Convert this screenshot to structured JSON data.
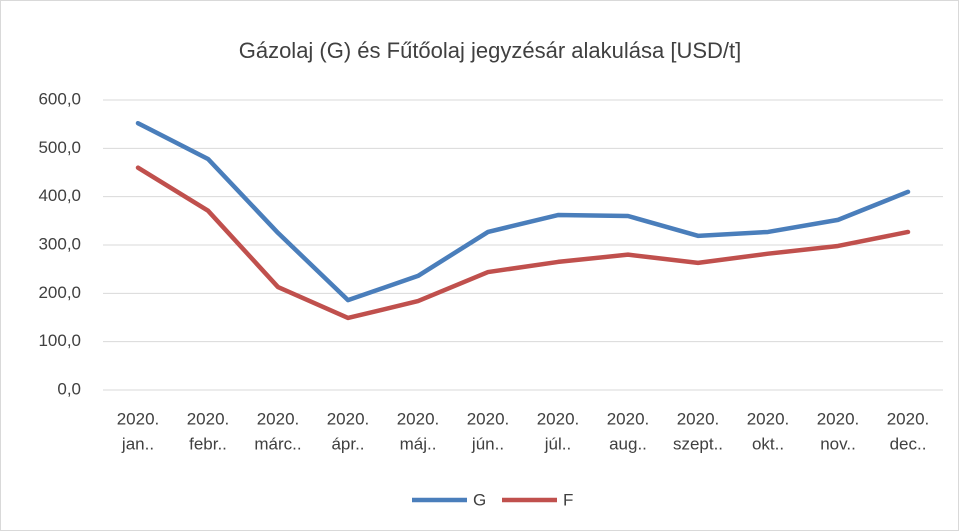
{
  "chart_data": {
    "type": "line",
    "title": "Gázolaj (G) és Fűtőolaj jegyzésár alakulása [USD/t]",
    "categories": [
      [
        "2020.",
        "jan.."
      ],
      [
        "2020.",
        "febr.."
      ],
      [
        "2020.",
        "márc.."
      ],
      [
        "2020.",
        "ápr.."
      ],
      [
        "2020.",
        "máj.."
      ],
      [
        "2020.",
        "jún.."
      ],
      [
        "2020.",
        "júl.."
      ],
      [
        "2020.",
        "aug.."
      ],
      [
        "2020.",
        "szept.."
      ],
      [
        "2020.",
        "okt.."
      ],
      [
        "2020.",
        "nov.."
      ],
      [
        "2020.",
        "dec.."
      ]
    ],
    "series": [
      {
        "name": "G",
        "color": "#4a7ebb",
        "values": [
          552,
          478,
          325,
          186,
          236,
          327,
          362,
          360,
          319,
          327,
          352,
          410
        ]
      },
      {
        "name": "F",
        "color": "#c0504d",
        "values": [
          460,
          371,
          213,
          149,
          184,
          244,
          265,
          280,
          263,
          282,
          298,
          327
        ]
      }
    ],
    "ylim": [
      0,
      600
    ],
    "yticks": [
      {
        "value": 0,
        "label": "0,0"
      },
      {
        "value": 100,
        "label": "100,0"
      },
      {
        "value": 200,
        "label": "200,0"
      },
      {
        "value": 300,
        "label": "300,0"
      },
      {
        "value": 400,
        "label": "400,0"
      },
      {
        "value": 500,
        "label": "500,0"
      },
      {
        "value": 600,
        "label": "600,0"
      }
    ],
    "grid": true,
    "legend": "bottom"
  }
}
